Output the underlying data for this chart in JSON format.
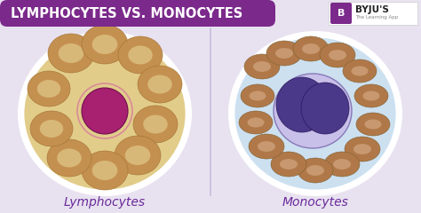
{
  "title": "LYMPHOCYTES VS. MONOCYTES",
  "title_bg": "#7b2a8b",
  "title_color": "#ffffff",
  "bg_color": "#e8e2f0",
  "divider_color": "#c8bcd8",
  "label_left": "Lymphocytes",
  "label_right": "Monocytes",
  "label_color": "#6a2a9a",
  "byju_box_color": "#7b2a8b",
  "byju_text": "BYJU'S",
  "byju_sub": "The Learning App",
  "left_ellipse_bg": "#e2cc8a",
  "right_ellipse_bg": "#cce0f0",
  "left_ellipse_edge": "#ffffff",
  "right_ellipse_edge": "#ffffff",
  "rbc_color_left": "#c49050",
  "rbc_color_right": "#b07848",
  "rbc_inner_left": "#d8b878",
  "rbc_inner_right": "#c89870",
  "lymphocyte_color": "#a82070",
  "monocyte_color": "#4a3888",
  "title_bar_width": 310,
  "title_bar_height": 30,
  "title_fontsize": 10.5,
  "label_fontsize": 10
}
